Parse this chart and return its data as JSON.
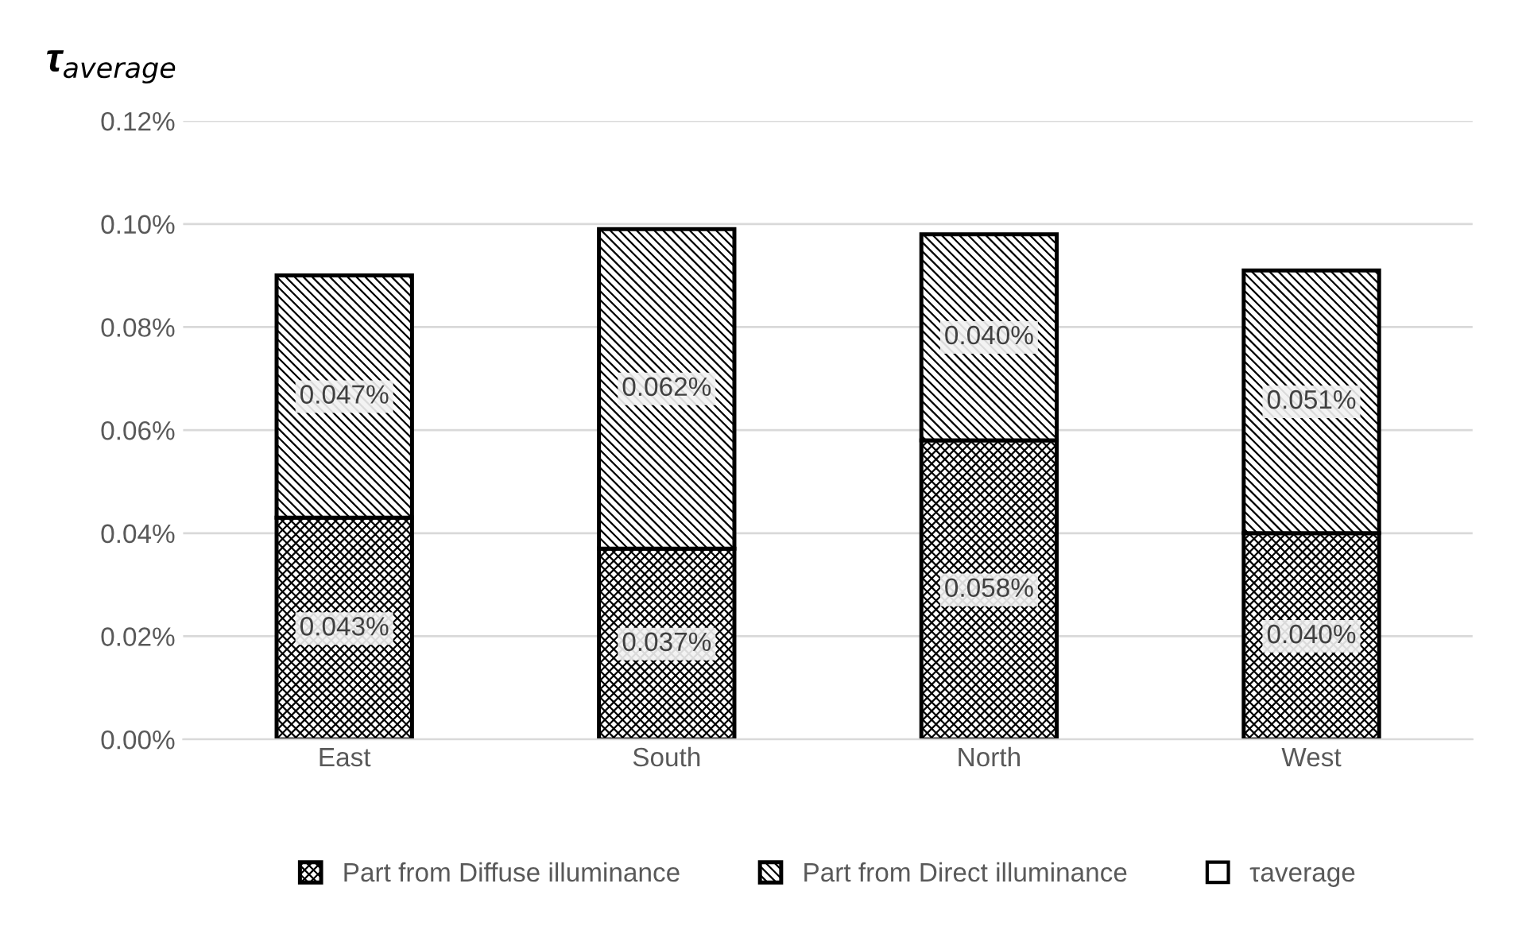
{
  "chart_data": {
    "type": "bar",
    "ylabel": "τ$_{average}$",
    "categories": [
      "East",
      "South",
      "North",
      "West"
    ],
    "stacked": true,
    "series": [
      {
        "name": "Part from Diffuse illuminance",
        "color": "#000000",
        "values": [
          0.043,
          0.037,
          0.058,
          0.04
        ],
        "value_labels": [
          "0.043%",
          "0.037%",
          "0.058%",
          "0.040%"
        ]
      },
      {
        "name": "Part from Direct illuminance",
        "color": "#000000",
        "values": [
          0.047,
          0.062,
          0.04,
          0.051
        ],
        "value_labels": [
          "0.047%",
          "0.062%",
          "0.040%",
          "0.051%"
        ]
      },
      {
        "name": "τaverage",
        "type": "bar",
        "color": "#000000",
        "values": [
          null,
          null,
          null,
          null
        ]
      }
    ],
    "ylim": [
      0,
      0.12
    ],
    "yticks": [
      {
        "value": 0,
        "label": "0.00%"
      },
      {
        "value": 0.02,
        "label": "0.02%"
      },
      {
        "value": 0.04,
        "label": "0.04%"
      },
      {
        "value": 0.06,
        "label": "0.06%"
      },
      {
        "value": 0.08,
        "label": "0.08%"
      },
      {
        "value": 0.1,
        "label": "0.10%"
      },
      {
        "value": 0.12,
        "label": "0.12%"
      }
    ],
    "grid": "y",
    "legend": "bottom"
  }
}
